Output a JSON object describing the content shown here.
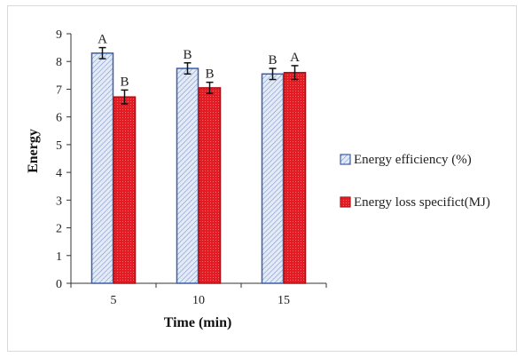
{
  "chart_data": {
    "type": "bar",
    "title": "",
    "xlabel": "Time (min)",
    "ylabel": "Energy",
    "categories": [
      "5",
      "10",
      "15"
    ],
    "ylim": [
      0,
      9
    ],
    "yticks": [
      0,
      1,
      2,
      3,
      4,
      5,
      6,
      7,
      8,
      9
    ],
    "grid": false,
    "legend_position": "right",
    "series": [
      {
        "name": "Energy efficiency (%)",
        "values": [
          8.3,
          7.75,
          7.55
        ],
        "errors": [
          0.2,
          0.2,
          0.2
        ],
        "labels": [
          "A",
          "B",
          "B"
        ],
        "color": "#dbe4f3",
        "stroke": "#3b5ea8"
      },
      {
        "name": "Energy loss specifict(MJ)",
        "values": [
          6.72,
          7.05,
          7.6
        ],
        "errors": [
          0.25,
          0.2,
          0.25
        ],
        "labels": [
          "B",
          "B",
          "A"
        ],
        "color": "#e31b23",
        "stroke": "#b01015"
      }
    ]
  }
}
